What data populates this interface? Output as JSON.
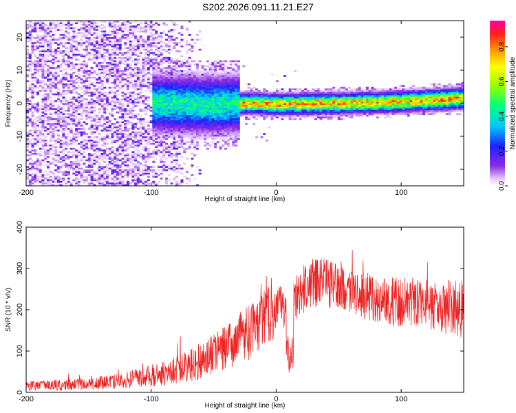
{
  "title": "S202.2026.091.11.21.E27",
  "chart_data": [
    {
      "type": "heatmap",
      "name": "spectrogram",
      "xlabel": "Height of straight line (km)",
      "ylabel": "Frequency (Hz)",
      "xlim": [
        -200,
        150
      ],
      "ylim": [
        -25,
        25
      ],
      "xticks": [
        -200,
        -100,
        0,
        100
      ],
      "yticks": [
        -20,
        -10,
        0,
        10,
        20
      ],
      "colorbar": {
        "label": "Normalized spectral amplitude",
        "range": [
          0,
          0.95
        ],
        "ticks": [
          "0.0",
          "0.2",
          "0.4",
          "0.6",
          "0.8"
        ]
      },
      "ridge": [
        {
          "x": -100,
          "y": 0.0
        },
        {
          "x": -50,
          "y": -0.5
        },
        {
          "x": -20,
          "y": 0.0
        },
        {
          "x": 0,
          "y": -0.3
        },
        {
          "x": 50,
          "y": 0.0
        },
        {
          "x": 100,
          "y": 0.5
        },
        {
          "x": 150,
          "y": 1.5
        }
      ]
    },
    {
      "type": "line",
      "name": "snr",
      "xlabel": "Height of straight line (km)",
      "ylabel": "SNR (10 * v/v)",
      "xlim": [
        -200,
        150
      ],
      "ylim": [
        0,
        400
      ],
      "xticks": [
        -200,
        -100,
        0,
        100
      ],
      "yticks": [
        0,
        100,
        200,
        300,
        400
      ],
      "color": "#ee2222",
      "envelope": [
        {
          "x": -200,
          "mean": 15,
          "spread": 12
        },
        {
          "x": -150,
          "mean": 20,
          "spread": 15
        },
        {
          "x": -120,
          "mean": 30,
          "spread": 20
        },
        {
          "x": -90,
          "mean": 45,
          "spread": 30
        },
        {
          "x": -60,
          "mean": 75,
          "spread": 45
        },
        {
          "x": -40,
          "mean": 110,
          "spread": 60
        },
        {
          "x": -20,
          "mean": 150,
          "spread": 70
        },
        {
          "x": -5,
          "mean": 190,
          "spread": 70
        },
        {
          "x": 10,
          "mean": 210,
          "spread": 60
        },
        {
          "x": 25,
          "mean": 260,
          "spread": 60
        },
        {
          "x": 40,
          "mean": 265,
          "spread": 60
        },
        {
          "x": 60,
          "mean": 240,
          "spread": 55
        },
        {
          "x": 90,
          "mean": 220,
          "spread": 60
        },
        {
          "x": 120,
          "mean": 215,
          "spread": 60
        },
        {
          "x": 150,
          "mean": 200,
          "spread": 70
        }
      ]
    }
  ]
}
